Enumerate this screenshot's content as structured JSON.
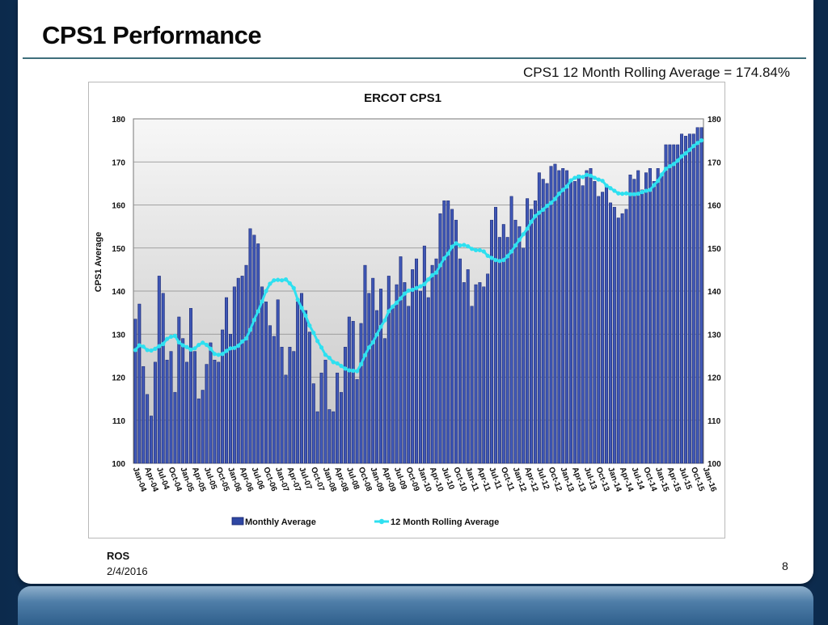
{
  "slide": {
    "title": "CPS1 Performance",
    "subtitle": "CPS1 12 Month Rolling Average = 174.84%",
    "footer_label": "ROS",
    "footer_date": "2/4/2016",
    "page_number": "8"
  },
  "colors": {
    "bar_fill": "#2f47a3",
    "bar_stroke": "#13206b",
    "line": "#2ee0f0",
    "plot_top": "#f7f7f7",
    "plot_bottom": "#c4c4c4"
  },
  "chart_data": {
    "type": "bar",
    "title": "ERCOT CPS1",
    "xlabel": "",
    "ylabel": "CPS1 Average",
    "ylim": [
      100,
      180
    ],
    "y_ticks": [
      "100",
      "110",
      "120",
      "130",
      "140",
      "150",
      "160",
      "170",
      "180"
    ],
    "grid": true,
    "legend_position": "bottom",
    "legend": [
      "Monthly Average",
      "12 Month Rolling Average"
    ],
    "x_tick_labels": [
      "Jan-04",
      "Apr-04",
      "Jul-04",
      "Oct-04",
      "Jan-05",
      "Apr-05",
      "Jul-05",
      "Oct-05",
      "Jan-06",
      "Apr-06",
      "Jul-06",
      "Oct-06",
      "Jan-07",
      "Apr-07",
      "Jul-07",
      "Oct-07",
      "Jan-08",
      "Apr-08",
      "Jul-08",
      "Oct-08",
      "Jan-09",
      "Apr-09",
      "Jul-09",
      "Oct-09",
      "Jan-10",
      "Apr-10",
      "Jul-10",
      "Oct-10",
      "Jan-11",
      "Apr-11",
      "Jul-11",
      "Oct-11",
      "Jan-12",
      "Apr-12",
      "Jul-12",
      "Oct-12",
      "Jan-13",
      "Apr-13",
      "Jul-13",
      "Oct-13",
      "Jan-14",
      "Apr-14",
      "Jul-14",
      "Oct-14",
      "Jan-15",
      "Apr-15",
      "Jul-15",
      "Oct-15",
      "Jan-16"
    ],
    "series": [
      {
        "name": "Monthly Average",
        "kind": "bar",
        "values": [
          133.5,
          137,
          122.5,
          116,
          111,
          123.5,
          143.5,
          139.5,
          124,
          126,
          116.5,
          134,
          129,
          123.5,
          136,
          126,
          115,
          117,
          123,
          128,
          124,
          123.5,
          131,
          138.5,
          130,
          141,
          143,
          143.5,
          146,
          154.5,
          153,
          151,
          141,
          137.5,
          132,
          129.5,
          138,
          127,
          120.5,
          127,
          126,
          137.5,
          139.5,
          135.5,
          130.5,
          118.5,
          112,
          121,
          124,
          112.5,
          112,
          121,
          116.5,
          127,
          134,
          133,
          119.5,
          132.5,
          146,
          139.5,
          143,
          135.5,
          140.5,
          129,
          143.5,
          136,
          141.5,
          148,
          142,
          136.5,
          145,
          147.5,
          140,
          150.5,
          138.5,
          146,
          147.5,
          158,
          161,
          161,
          159,
          156.5,
          147.5,
          142,
          145,
          136.5,
          141.5,
          142,
          141,
          144,
          156.5,
          159.5,
          152.5,
          155.5,
          152.5,
          162,
          156.5,
          155,
          150,
          161.5,
          159,
          161,
          167.5,
          166,
          165,
          169,
          169.5,
          168,
          168.5,
          168,
          166,
          165.5,
          167,
          164.5,
          168,
          168.5,
          165.5,
          162,
          163,
          164.5,
          160.5,
          159.5,
          157,
          158,
          159,
          167,
          166,
          168,
          163.5,
          167.5,
          168.5,
          165.5,
          168.5,
          167,
          174,
          174,
          174,
          174,
          176.5,
          176,
          176.5,
          176.5,
          178,
          178
        ],
        "count": 145
      },
      {
        "name": "12 Month Rolling Average",
        "kind": "line",
        "values": [
          126.3,
          127.4,
          127.1,
          126.3,
          126.2,
          126.6,
          127.2,
          127.7,
          128.9,
          129.4,
          129.6,
          128.1,
          127.4,
          127,
          126.4,
          126.7,
          127.5,
          128,
          127.5,
          126.6,
          125.4,
          125.2,
          125.4,
          126.1,
          126.7,
          126.8,
          127.3,
          128.3,
          129,
          131,
          133.3,
          135.3,
          137.6,
          140,
          141.7,
          142.5,
          142.6,
          142.5,
          142.7,
          141.8,
          140.7,
          138,
          136.1,
          134.3,
          132,
          130.3,
          128.4,
          126.9,
          125.2,
          124.5,
          123.5,
          123.2,
          122.6,
          122,
          121.6,
          121.5,
          121.4,
          123,
          125.1,
          126.9,
          128.1,
          129.9,
          131.7,
          133.2,
          135.3,
          136.4,
          137.3,
          138.3,
          139.4,
          140.1,
          140.3,
          140.7,
          141.1,
          141.6,
          142.7,
          143.7,
          144.3,
          146,
          147.6,
          148.7,
          150.3,
          151.1,
          150.6,
          150.7,
          150.4,
          149.8,
          149.5,
          149.5,
          149.2,
          148.2,
          147.7,
          147.2,
          147,
          147.2,
          148.1,
          149.2,
          150.6,
          151.9,
          153.2,
          154.5,
          156.1,
          157.4,
          158.2,
          158.9,
          159.8,
          160.5,
          161.4,
          162.6,
          163.5,
          164.3,
          165.7,
          166.3,
          166.6,
          166.5,
          167,
          166.8,
          166.3,
          165.9,
          165.6,
          164.5,
          163.9,
          163.3,
          162.7,
          162.6,
          162.7,
          162.5,
          162.5,
          162.6,
          163,
          163.3,
          163.5,
          164.6,
          165.6,
          167.1,
          168.4,
          169,
          169.5,
          170.3,
          171.3,
          172,
          172.8,
          173.7,
          174.4,
          175
        ],
        "count": 145
      }
    ]
  }
}
